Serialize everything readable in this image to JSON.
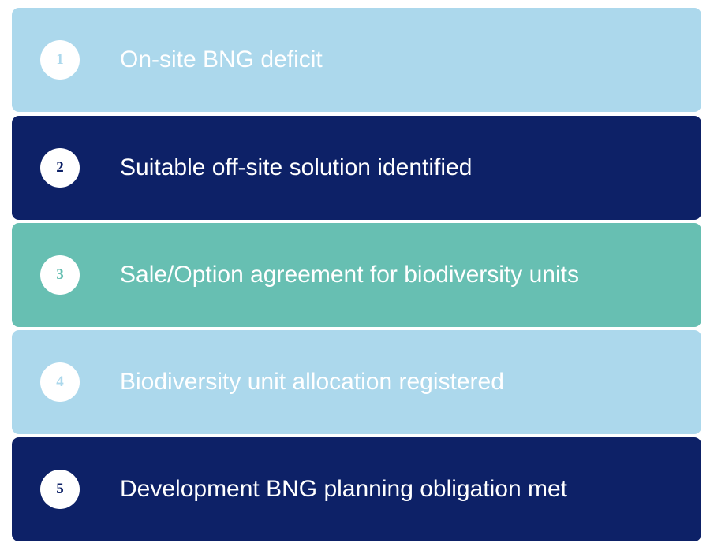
{
  "steps": [
    {
      "number": 1,
      "label": "On-site BNG deficit"
    },
    {
      "number": 2,
      "label": "Suitable off-site solution identified"
    },
    {
      "number": 3,
      "label": "Sale/Option agreement for biodiversity units"
    },
    {
      "number": 4,
      "label": "Biodiversity unit allocation registered"
    },
    {
      "number": 5,
      "label": "Development BNG planning obligation met"
    }
  ]
}
